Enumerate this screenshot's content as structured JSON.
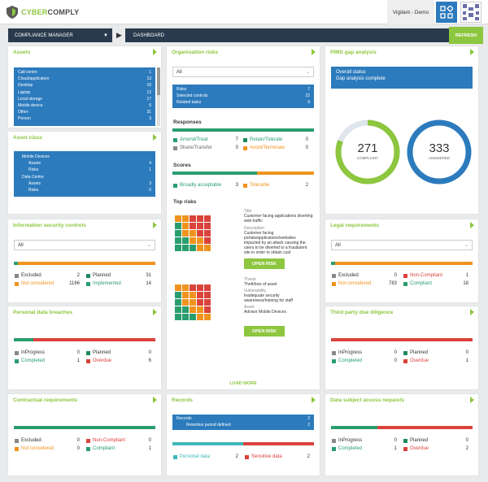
{
  "app": {
    "brand_cyber": "CYBER",
    "brand_comply": "COMPLY",
    "user": "Vigilant - Demo"
  },
  "nav": {
    "section": "COMPLIANCE MANAGER",
    "page": "DASHBOARD",
    "refresh": "REFRESH"
  },
  "assets": {
    "title": "Assets",
    "rows": [
      {
        "label": "Call centre",
        "value": "1"
      },
      {
        "label": "Cloud/application",
        "value": "13"
      },
      {
        "label": "Desktop",
        "value": "10"
      },
      {
        "label": "Laptop",
        "value": "12"
      },
      {
        "label": "Local storage",
        "value": "17"
      },
      {
        "label": "Mobile device",
        "value": "6"
      },
      {
        "label": "Other",
        "value": "31"
      },
      {
        "label": "Person",
        "value": "3"
      }
    ]
  },
  "asset_class": {
    "title": "Asset class",
    "groups": [
      {
        "name": "Mobile Devices",
        "rows": [
          {
            "label": "Assets",
            "value": "4"
          },
          {
            "label": "Risks",
            "value": "1"
          }
        ]
      },
      {
        "name": "Data Centre",
        "rows": [
          {
            "label": "Assets",
            "value": "3"
          },
          {
            "label": "Risks",
            "value": "0"
          }
        ]
      }
    ]
  },
  "org_risks": {
    "title": "Organisation risks",
    "select": "All",
    "rows": [
      {
        "label": "Risks",
        "value": "7"
      },
      {
        "label": "Selected controls",
        "value": "22"
      },
      {
        "label": "Related tasks",
        "value": "9"
      }
    ],
    "responses_title": "Responses",
    "responses": [
      {
        "label": "Amend/Treat",
        "value": "7"
      },
      {
        "label": "Retain/Tolerate",
        "value": "0"
      },
      {
        "label": "Share/Transfer",
        "value": "0"
      },
      {
        "label": "Avoid/Terminate",
        "value": "0"
      }
    ],
    "scores_title": "Scores",
    "scores": [
      {
        "label": "Broadly acceptable",
        "value": "3"
      },
      {
        "label": "Tolerable",
        "value": "2"
      }
    ],
    "top_risks_title": "Top risks",
    "risk1": {
      "title_label": "Title",
      "title": "Customer facing applications diverting web traffic",
      "desc_label": "Description",
      "desc": "Customer facing portals/applications/websites impacted by an attack causing the users to be diverted to a fraudulent site in order to obtain cust",
      "button": "OPEN RISK"
    },
    "risk2": {
      "threat_label": "Threat",
      "threat": "Theft/loss of asset",
      "vuln_label": "Vulnerability",
      "vuln": "Inadequate security awareness/training for staff",
      "asset_label": "Asset",
      "asset": "Advisor Mobile Devices",
      "button": "OPEN RISK"
    },
    "load_more": "LOAD MORE"
  },
  "pims": {
    "title": "PIMS gap analysis",
    "status_title": "Overall status",
    "status": "Gap analysis complete",
    "compliant_value": "271",
    "compliant_label": "COMPLIANT",
    "answered_value": "333",
    "answered_label": "ANSWERED",
    "compliant_fraction": 0.81
  },
  "isc": {
    "title": "Information security controls",
    "select": "All",
    "legend": [
      {
        "label": "Excluded",
        "value": "2"
      },
      {
        "label": "Planned",
        "value": "31"
      },
      {
        "label": "Not considered",
        "value": "1166"
      },
      {
        "label": "Implemented",
        "value": "14"
      }
    ]
  },
  "legal": {
    "title": "Legal requirements",
    "select": "All",
    "legend": [
      {
        "label": "Excluded",
        "value": "0"
      },
      {
        "label": "Non-Compliant",
        "value": "1"
      },
      {
        "label": "Not considered",
        "value": "783"
      },
      {
        "label": "Compliant",
        "value": "18"
      }
    ]
  },
  "breaches": {
    "title": "Personal data breaches",
    "legend": [
      {
        "label": "InProgress",
        "value": "0"
      },
      {
        "label": "Planned",
        "value": "0"
      },
      {
        "label": "Completed",
        "value": "1"
      },
      {
        "label": "Overdue",
        "value": "6"
      }
    ]
  },
  "third_party": {
    "title": "Third party due diligence",
    "legend": [
      {
        "label": "InProgress",
        "value": "0"
      },
      {
        "label": "Planned",
        "value": "0"
      },
      {
        "label": "Completed",
        "value": "0"
      },
      {
        "label": "Overdue",
        "value": "1"
      }
    ]
  },
  "contractual": {
    "title": "Contractual requirements",
    "legend": [
      {
        "label": "Excluded",
        "value": "0"
      },
      {
        "label": "Non-Compliant",
        "value": "0"
      },
      {
        "label": "Not considered",
        "value": "0"
      },
      {
        "label": "Compliant",
        "value": "1"
      }
    ]
  },
  "records": {
    "title": "Records",
    "rows": [
      {
        "label": "Records",
        "value": "2"
      },
      {
        "label": "Retention period defined",
        "value": "2"
      }
    ],
    "legend": [
      {
        "label": "Personal data",
        "value": "2"
      },
      {
        "label": "Sensitive data",
        "value": "2"
      }
    ]
  },
  "dsar": {
    "title": "Data subject access requests",
    "legend": [
      {
        "label": "InProgress",
        "value": "0"
      },
      {
        "label": "Planned",
        "value": "0"
      },
      {
        "label": "Completed",
        "value": "1"
      },
      {
        "label": "Overdue",
        "value": "2"
      }
    ]
  }
}
